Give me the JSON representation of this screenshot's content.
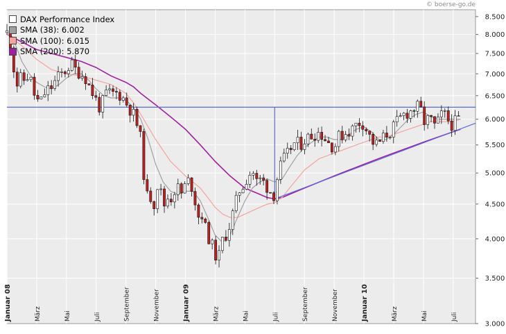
{
  "source_credit": "© boerse-go.de",
  "chart_data": {
    "type": "line",
    "title": "DAX Performance Index",
    "y_scale": "log",
    "ylim": [
      3000,
      8700
    ],
    "y_ticks": [
      {
        "value": 8500,
        "label": "8.500"
      },
      {
        "value": 8000,
        "label": "8.000"
      },
      {
        "value": 7500,
        "label": "7.500"
      },
      {
        "value": 7000,
        "label": "7.000"
      },
      {
        "value": 6500,
        "label": "6.500"
      },
      {
        "value": 6000,
        "label": "6.000"
      },
      {
        "value": 5500,
        "label": "5.500"
      },
      {
        "value": 5000,
        "label": "5.000"
      },
      {
        "value": 4500,
        "label": "4.500"
      },
      {
        "value": 4000,
        "label": "4.000"
      },
      {
        "value": 3500,
        "label": "3.500"
      },
      {
        "value": 3000,
        "label": "3.000"
      }
    ],
    "x_range_months": [
      0,
      31.5
    ],
    "x_ticks": [
      {
        "t": 0,
        "label": "Januar 08",
        "bold": true
      },
      {
        "t": 2,
        "label": "März",
        "bold": false
      },
      {
        "t": 4,
        "label": "Mai",
        "bold": false
      },
      {
        "t": 6,
        "label": "Juli",
        "bold": false
      },
      {
        "t": 8,
        "label": "September",
        "bold": false
      },
      {
        "t": 10,
        "label": "November",
        "bold": false
      },
      {
        "t": 12,
        "label": "Januar 09",
        "bold": true
      },
      {
        "t": 14,
        "label": "März",
        "bold": false
      },
      {
        "t": 16,
        "label": "Mai",
        "bold": false
      },
      {
        "t": 18,
        "label": "Juli",
        "bold": false
      },
      {
        "t": 20,
        "label": "September",
        "bold": false
      },
      {
        "t": 22,
        "label": "November",
        "bold": false
      },
      {
        "t": 24,
        "label": "Januar 10",
        "bold": true
      },
      {
        "t": 26,
        "label": "März",
        "bold": false
      },
      {
        "t": 28,
        "label": "Mai",
        "bold": false
      },
      {
        "t": 30,
        "label": "Juli",
        "bold": false
      }
    ],
    "legend": [
      {
        "label": "DAX Performance Index",
        "color": "#ffffff"
      },
      {
        "label": "SMA (38): 6.002",
        "color": "#a0a0a0"
      },
      {
        "label": "SMA (100): 6.015",
        "color": "#f4a49c"
      },
      {
        "label": "SMA (200): 5.870",
        "color": "#a020a0"
      }
    ],
    "series": [
      {
        "name": "DAX Performance Index",
        "style": "candles",
        "up_color": "#ffffff",
        "down_color": "#c02020",
        "points": [
          [
            0,
            8050
          ],
          [
            0.3,
            7700
          ],
          [
            0.6,
            6650
          ],
          [
            0.8,
            6900
          ],
          [
            1.2,
            6850
          ],
          [
            1.5,
            7000
          ],
          [
            1.8,
            6550
          ],
          [
            2.2,
            6300
          ],
          [
            2.6,
            6600
          ],
          [
            3.0,
            6700
          ],
          [
            3.5,
            6950
          ],
          [
            4.0,
            7100
          ],
          [
            4.3,
            7250
          ],
          [
            4.6,
            7100
          ],
          [
            5.0,
            7000
          ],
          [
            5.3,
            6900
          ],
          [
            5.6,
            6650
          ],
          [
            6.0,
            6400
          ],
          [
            6.3,
            6200
          ],
          [
            6.6,
            6550
          ],
          [
            7.0,
            6550
          ],
          [
            7.5,
            6550
          ],
          [
            7.8,
            6450
          ],
          [
            8.2,
            6250
          ],
          [
            8.6,
            6050
          ],
          [
            9.0,
            5600
          ],
          [
            9.2,
            5000
          ],
          [
            9.4,
            4600
          ],
          [
            9.6,
            4700
          ],
          [
            9.8,
            4400
          ],
          [
            10.0,
            4650
          ],
          [
            10.2,
            4900
          ],
          [
            10.5,
            4450
          ],
          [
            10.8,
            4600
          ],
          [
            11.1,
            4600
          ],
          [
            11.4,
            4800
          ],
          [
            11.7,
            4650
          ],
          [
            12.0,
            4800
          ],
          [
            12.3,
            4900
          ],
          [
            12.6,
            4600
          ],
          [
            12.9,
            4300
          ],
          [
            13.1,
            4350
          ],
          [
            13.4,
            4100
          ],
          [
            13.7,
            3950
          ],
          [
            14.0,
            3800
          ],
          [
            14.2,
            3700
          ],
          [
            14.4,
            3950
          ],
          [
            14.7,
            4050
          ],
          [
            15.0,
            4200
          ],
          [
            15.3,
            4450
          ],
          [
            15.6,
            4700
          ],
          [
            15.9,
            4800
          ],
          [
            16.2,
            4950
          ],
          [
            16.5,
            5050
          ],
          [
            16.8,
            4850
          ],
          [
            17.1,
            4900
          ],
          [
            17.4,
            4800
          ],
          [
            17.7,
            4700
          ],
          [
            17.9,
            4600
          ],
          [
            18.2,
            4950
          ],
          [
            18.5,
            5200
          ],
          [
            18.8,
            5300
          ],
          [
            19.1,
            5450
          ],
          [
            19.4,
            5550
          ],
          [
            19.7,
            5500
          ],
          [
            20.0,
            5600
          ],
          [
            20.3,
            5650
          ],
          [
            20.6,
            5700
          ],
          [
            21.0,
            5750
          ],
          [
            21.3,
            5650
          ],
          [
            21.6,
            5550
          ],
          [
            22.0,
            5450
          ],
          [
            22.3,
            5650
          ],
          [
            22.6,
            5700
          ],
          [
            22.9,
            5750
          ],
          [
            23.2,
            5800
          ],
          [
            23.5,
            5900
          ],
          [
            23.8,
            5950
          ],
          [
            24.0,
            5900
          ],
          [
            24.3,
            5700
          ],
          [
            24.6,
            5550
          ],
          [
            24.9,
            5500
          ],
          [
            25.2,
            5600
          ],
          [
            25.5,
            5700
          ],
          [
            25.8,
            5750
          ],
          [
            26.1,
            5900
          ],
          [
            26.4,
            6000
          ],
          [
            26.7,
            6100
          ],
          [
            27.0,
            6150
          ],
          [
            27.3,
            6200
          ],
          [
            27.6,
            6250
          ],
          [
            27.9,
            6150
          ],
          [
            28.1,
            5900
          ],
          [
            28.4,
            6050
          ],
          [
            28.7,
            5850
          ],
          [
            29.0,
            5950
          ],
          [
            29.3,
            6150
          ],
          [
            29.6,
            6000
          ],
          [
            29.9,
            5900
          ],
          [
            30.2,
            5950
          ],
          [
            30.5,
            6050
          ]
        ]
      },
      {
        "name": "SMA (38)",
        "style": "line",
        "color": "#a0a0a0",
        "points": [
          [
            0,
            8100
          ],
          [
            0.5,
            7800
          ],
          [
            1.0,
            7300
          ],
          [
            1.5,
            7000
          ],
          [
            2.0,
            6800
          ],
          [
            2.5,
            6700
          ],
          [
            3.0,
            6650
          ],
          [
            3.5,
            6750
          ],
          [
            4.0,
            6900
          ],
          [
            4.5,
            7000
          ],
          [
            5.0,
            7000
          ],
          [
            5.5,
            6850
          ],
          [
            6.0,
            6650
          ],
          [
            6.5,
            6500
          ],
          [
            7.0,
            6450
          ],
          [
            7.5,
            6450
          ],
          [
            8.0,
            6400
          ],
          [
            8.5,
            6250
          ],
          [
            9.0,
            6000
          ],
          [
            9.5,
            5600
          ],
          [
            10.0,
            5150
          ],
          [
            10.5,
            4850
          ],
          [
            11.0,
            4700
          ],
          [
            11.5,
            4650
          ],
          [
            12.0,
            4700
          ],
          [
            12.5,
            4700
          ],
          [
            13.0,
            4550
          ],
          [
            13.5,
            4300
          ],
          [
            14.0,
            4050
          ],
          [
            14.5,
            3950
          ],
          [
            15.0,
            4050
          ],
          [
            15.5,
            4300
          ],
          [
            16.0,
            4550
          ],
          [
            16.5,
            4750
          ],
          [
            17.0,
            4850
          ],
          [
            17.5,
            4900
          ],
          [
            18.0,
            4850
          ],
          [
            18.5,
            4900
          ],
          [
            19.0,
            5100
          ],
          [
            19.5,
            5300
          ],
          [
            20.0,
            5450
          ],
          [
            20.5,
            5550
          ],
          [
            21.0,
            5650
          ],
          [
            21.5,
            5650
          ],
          [
            22.0,
            5600
          ],
          [
            22.5,
            5600
          ],
          [
            23.0,
            5700
          ],
          [
            23.5,
            5800
          ],
          [
            24.0,
            5850
          ],
          [
            24.5,
            5750
          ],
          [
            25.0,
            5600
          ],
          [
            25.5,
            5600
          ],
          [
            26.0,
            5700
          ],
          [
            26.5,
            5850
          ],
          [
            27.0,
            6000
          ],
          [
            27.5,
            6100
          ],
          [
            28.0,
            6150
          ],
          [
            28.5,
            6050
          ],
          [
            29.0,
            6000
          ],
          [
            29.5,
            6000
          ],
          [
            30.0,
            6000
          ],
          [
            30.5,
            6000
          ]
        ]
      },
      {
        "name": "SMA (100)",
        "style": "line",
        "color": "#f4a49c",
        "points": [
          [
            0,
            8000
          ],
          [
            1.0,
            7700
          ],
          [
            2.0,
            7350
          ],
          [
            3.0,
            7100
          ],
          [
            4.0,
            7000
          ],
          [
            5.0,
            6950
          ],
          [
            6.0,
            6850
          ],
          [
            7.0,
            6750
          ],
          [
            7.5,
            6650
          ],
          [
            8.0,
            6550
          ],
          [
            8.5,
            6350
          ],
          [
            9.0,
            6100
          ],
          [
            10.0,
            5600
          ],
          [
            11.0,
            5200
          ],
          [
            12.0,
            4950
          ],
          [
            12.5,
            4850
          ],
          [
            13.0,
            4750
          ],
          [
            13.5,
            4600
          ],
          [
            14.0,
            4450
          ],
          [
            14.5,
            4350
          ],
          [
            15.0,
            4300
          ],
          [
            15.5,
            4300
          ],
          [
            16.0,
            4350
          ],
          [
            16.5,
            4400
          ],
          [
            17.0,
            4450
          ],
          [
            17.5,
            4500
          ],
          [
            18.0,
            4520
          ],
          [
            18.5,
            4600
          ],
          [
            19.0,
            4750
          ],
          [
            19.5,
            4900
          ],
          [
            20.0,
            5050
          ],
          [
            20.5,
            5150
          ],
          [
            21.0,
            5250
          ],
          [
            21.5,
            5300
          ],
          [
            22.0,
            5350
          ],
          [
            22.5,
            5400
          ],
          [
            23.0,
            5450
          ],
          [
            23.5,
            5500
          ],
          [
            24.0,
            5550
          ],
          [
            24.5,
            5600
          ],
          [
            25.0,
            5650
          ],
          [
            25.5,
            5650
          ],
          [
            26.0,
            5700
          ],
          [
            26.5,
            5750
          ],
          [
            27.0,
            5800
          ],
          [
            27.5,
            5850
          ],
          [
            28.0,
            5900
          ],
          [
            28.5,
            5950
          ],
          [
            29.0,
            5950
          ],
          [
            29.5,
            5950
          ],
          [
            30.0,
            5950
          ],
          [
            30.5,
            6000
          ]
        ]
      },
      {
        "name": "SMA (200)",
        "style": "line",
        "color": "#a020a0",
        "points": [
          [
            0,
            8000
          ],
          [
            0.5,
            7900
          ],
          [
            1.0,
            7800
          ],
          [
            2.0,
            7600
          ],
          [
            3.0,
            7500
          ],
          [
            4.0,
            7400
          ],
          [
            5.0,
            7300
          ],
          [
            6.0,
            7150
          ],
          [
            7.0,
            6950
          ],
          [
            8.0,
            6800
          ],
          [
            8.5,
            6700
          ],
          [
            9.0,
            6550
          ],
          [
            10.0,
            6300
          ],
          [
            11.0,
            6050
          ],
          [
            12.0,
            5800
          ],
          [
            13.0,
            5500
          ],
          [
            14.0,
            5200
          ],
          [
            15.0,
            4950
          ],
          [
            15.5,
            4850
          ],
          [
            16.0,
            4750
          ],
          [
            17.0,
            4650
          ],
          [
            17.5,
            4600
          ],
          [
            18.0,
            4580
          ],
          [
            18.5,
            4600
          ],
          [
            19.0,
            4650
          ],
          [
            20.0,
            4750
          ],
          [
            21.0,
            4850
          ],
          [
            22.0,
            4950
          ],
          [
            23.0,
            5050
          ],
          [
            24.0,
            5150
          ],
          [
            25.0,
            5250
          ],
          [
            25.5,
            5300
          ],
          [
            26.0,
            5350
          ],
          [
            27.0,
            5450
          ],
          [
            28.0,
            5550
          ],
          [
            28.5,
            5600
          ],
          [
            29.0,
            5650
          ],
          [
            29.5,
            5700
          ],
          [
            30.0,
            5750
          ],
          [
            30.5,
            5800
          ]
        ]
      },
      {
        "name": "Trendlinie",
        "style": "line",
        "color": "#5a6ad8",
        "points": [
          [
            18.0,
            4580
          ],
          [
            31.5,
            5920
          ]
        ]
      },
      {
        "name": "Horizontale",
        "style": "line",
        "color": "#5a6ad8",
        "points": [
          [
            0,
            6250
          ],
          [
            31.5,
            6250
          ]
        ]
      },
      {
        "name": "Vertikale",
        "style": "line",
        "color": "#5a6ad8",
        "points": [
          [
            18.0,
            4600
          ],
          [
            18.0,
            6250
          ]
        ]
      }
    ]
  }
}
